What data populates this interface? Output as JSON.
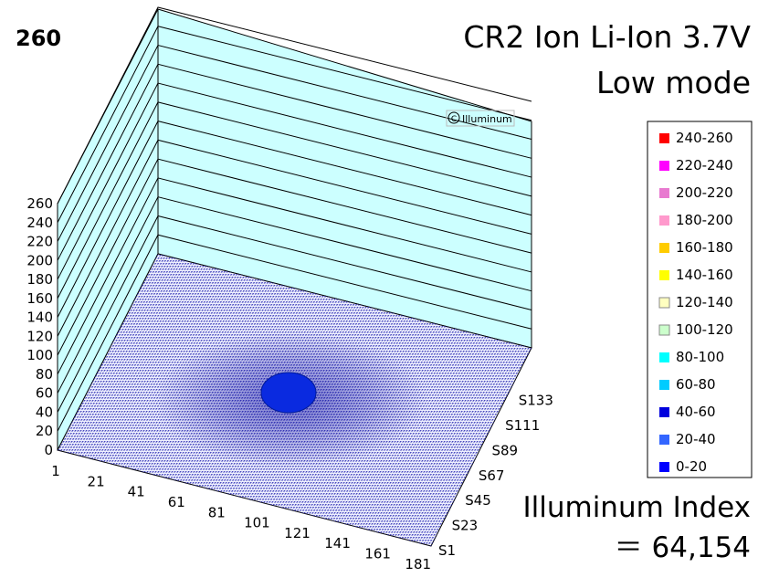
{
  "max_value_label": "260",
  "title_line1": "CR2 Ion Li-Ion 3.7V",
  "title_line2": "Low mode",
  "copyright": "Illuminum",
  "index_line1": "Illuminum Index",
  "index_line2": "＝ 64,154",
  "chart_data": {
    "type": "3d-surface",
    "z_ticks": [
      "0",
      "20",
      "40",
      "60",
      "80",
      "100",
      "120",
      "140",
      "160",
      "180",
      "200",
      "220",
      "240",
      "260"
    ],
    "zlim": [
      0,
      260
    ],
    "x_ticks": [
      "1",
      "21",
      "41",
      "61",
      "81",
      "101",
      "121",
      "141",
      "161",
      "181"
    ],
    "y_ticks": [
      "S1",
      "S23",
      "S45",
      "S67",
      "S89",
      "S111",
      "S133"
    ],
    "grid": true,
    "legend_position": "right",
    "legend": [
      {
        "label": "240-260",
        "color": "#ff0000"
      },
      {
        "label": "220-240",
        "color": "#ff00ff"
      },
      {
        "label": "200-220",
        "color": "#e87ad0"
      },
      {
        "label": "180-200",
        "color": "#ff99cc"
      },
      {
        "label": "160-180",
        "color": "#ffcc00"
      },
      {
        "label": "140-160",
        "color": "#ffff00"
      },
      {
        "label": "120-140",
        "color": "#ffffc0"
      },
      {
        "label": "100-120",
        "color": "#ccffcc"
      },
      {
        "label": "80-100",
        "color": "#00ffff"
      },
      {
        "label": "60-80",
        "color": "#00ccff"
      },
      {
        "label": "40-60",
        "color": "#0000dd"
      },
      {
        "label": "20-40",
        "color": "#3366ff"
      },
      {
        "label": "0-20",
        "color": "#0000ff"
      }
    ],
    "surface": {
      "peak_band": "40-60",
      "background_band": "0-20"
    },
    "colors": {
      "wall": "#ccffff",
      "floor_mesh": "#1a1aaa",
      "hotspot": "#0a2ae0"
    }
  }
}
